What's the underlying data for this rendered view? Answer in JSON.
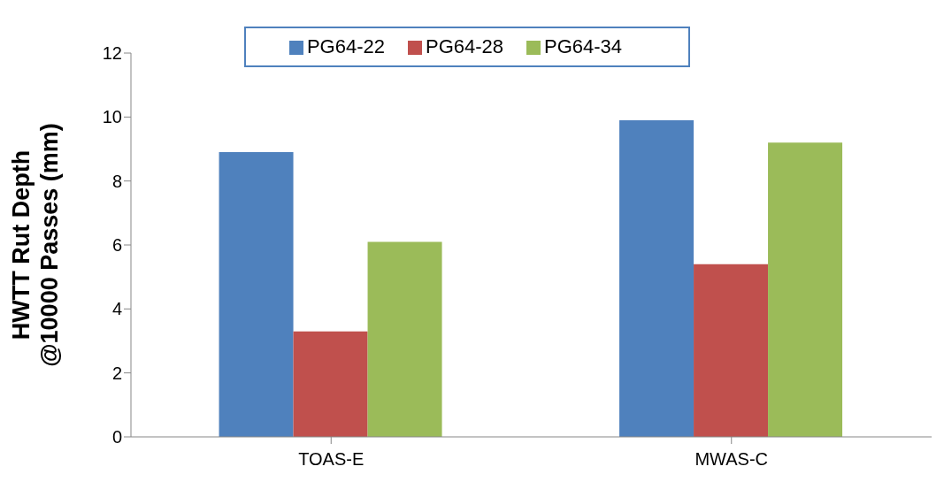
{
  "chart_data": {
    "type": "bar",
    "ylabel": "HWTT Rut Depth @10000 Passes (mm)",
    "categories": [
      "TOAS-E",
      "MWAS-C"
    ],
    "series": [
      {
        "name": "PG64-22",
        "color": "#4f81bd",
        "values": [
          8.9,
          9.9
        ]
      },
      {
        "name": "PG64-28",
        "color": "#c0504d",
        "values": [
          3.3,
          5.4
        ]
      },
      {
        "name": "PG64-34",
        "color": "#9bbb59",
        "values": [
          6.1,
          9.2
        ]
      }
    ],
    "ylim": [
      0,
      12
    ],
    "yticks": [
      0,
      2,
      4,
      6,
      8,
      10,
      12
    ],
    "grid": false,
    "legend": "top"
  }
}
